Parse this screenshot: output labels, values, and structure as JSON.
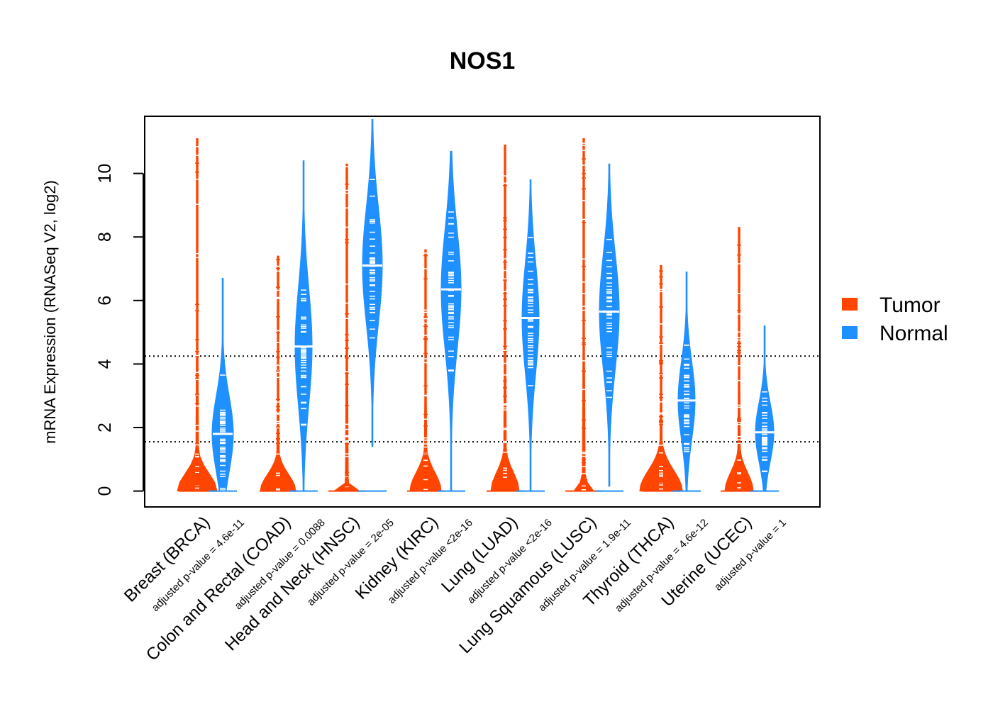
{
  "chart_data": {
    "type": "violin",
    "title": "NOS1",
    "xlabel": "",
    "ylabel": "mRNA Expression (RNASeq V2, log2)",
    "ylim": [
      -0.5,
      11.8
    ],
    "yticks": [
      0,
      2,
      4,
      6,
      8,
      10
    ],
    "reference_lines": [
      1.55,
      4.25
    ],
    "colors": {
      "Tumor": "#ff4500",
      "Normal": "#1e90ff"
    },
    "legend": {
      "position": "right",
      "entries": [
        "Tumor",
        "Normal"
      ]
    },
    "categories": [
      "Breast (BRCA)",
      "Colon and Rectal (COAD)",
      "Head and Neck (HNSC)",
      "Kidney (KIRC)",
      "Lung (LUAD)",
      "Lung Squamous (LUSC)",
      "Thyroid (THCA)",
      "Uterine (UCEC)"
    ],
    "pvalues": [
      "adjusted p-value = 4.6e-11",
      "adjusted p-value = 0.0088",
      "adjusted p-value = 2e-05",
      "adjusted p-value <2e-16",
      "adjusted p-value <2e-16",
      "adjusted p-value = 1.9e-11",
      "adjusted p-value = 4.6e-12",
      "adjusted p-value = 1"
    ],
    "series": [
      {
        "name": "Tumor",
        "median": [
          0,
          0,
          0,
          0,
          0,
          0,
          0,
          0
        ],
        "min": [
          0,
          0,
          0,
          0,
          0,
          0,
          0,
          0
        ],
        "max": [
          11.1,
          7.4,
          10.3,
          7.6,
          10.9,
          11.1,
          7.1,
          8.3
        ]
      },
      {
        "name": "Normal",
        "median": [
          1.8,
          4.55,
          7.1,
          6.35,
          5.45,
          5.65,
          2.85,
          1.85
        ],
        "min": [
          0,
          0,
          1.4,
          0,
          0,
          0.15,
          0,
          0
        ],
        "max": [
          6.7,
          10.4,
          11.7,
          10.7,
          9.8,
          10.3,
          6.9,
          5.2
        ]
      }
    ]
  }
}
